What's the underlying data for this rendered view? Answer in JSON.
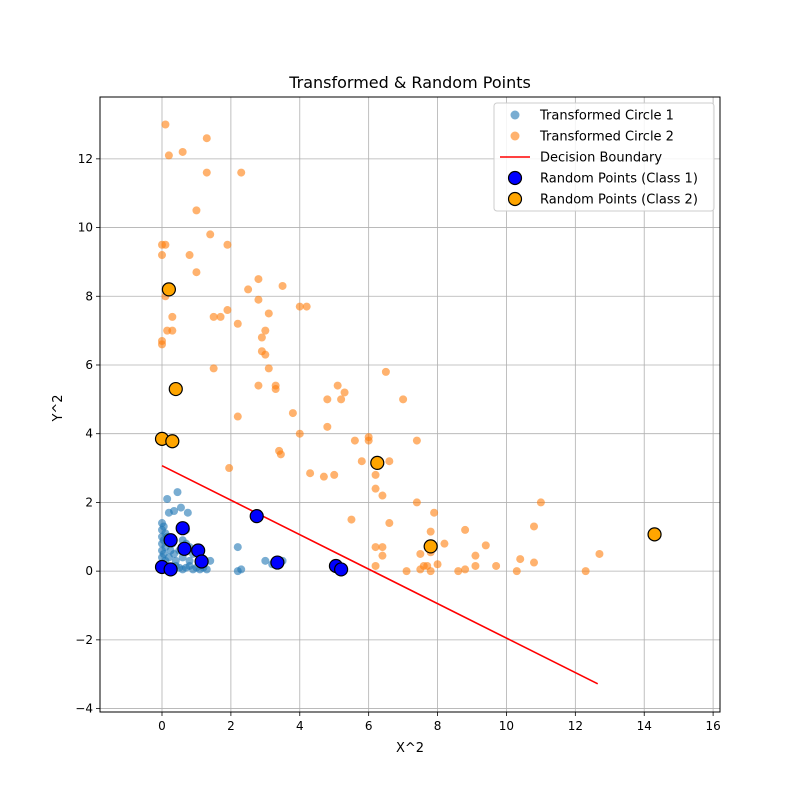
{
  "chart_data": {
    "type": "scatter",
    "title": "Transformed & Random Points",
    "xlabel": "X^2",
    "ylabel": "Y^2",
    "xlim": [
      -1.8,
      16.2
    ],
    "ylim": [
      -4.1,
      13.8
    ],
    "xticks": [
      0,
      2,
      4,
      6,
      8,
      10,
      12,
      14,
      16
    ],
    "yticks": [
      -4,
      -2,
      0,
      2,
      4,
      6,
      8,
      10,
      12
    ],
    "grid": true,
    "legend_position": "top-right",
    "colors": {
      "circle1": "#1f77b4",
      "circle2": "#ff7f0e",
      "boundary": "#ff0000",
      "class1": "#0000ff",
      "class2": "#ffa500"
    },
    "series": [
      {
        "name": "Transformed Circle 1",
        "kind": "scatter",
        "points": [
          [
            0,
            1.4
          ],
          [
            0.05,
            1.3
          ],
          [
            0,
            1.2
          ],
          [
            0.1,
            1.1
          ],
          [
            0,
            1.0
          ],
          [
            0.05,
            0.9
          ],
          [
            0,
            0.8
          ],
          [
            0.1,
            0.7
          ],
          [
            0,
            0.6
          ],
          [
            0.05,
            0.5
          ],
          [
            0,
            0.4
          ],
          [
            0.1,
            0.3
          ],
          [
            0.05,
            0.2
          ],
          [
            0,
            0.1
          ],
          [
            0.1,
            0.05
          ],
          [
            0.2,
            0.1
          ],
          [
            0.3,
            0.05
          ],
          [
            0.4,
            0.15
          ],
          [
            0.5,
            0.1
          ],
          [
            0.6,
            0.05
          ],
          [
            0.7,
            0.1
          ],
          [
            0.8,
            0.15
          ],
          [
            0.9,
            0.05
          ],
          [
            1.0,
            0.1
          ],
          [
            1.1,
            0.05
          ],
          [
            1.2,
            0.1
          ],
          [
            1.3,
            0.05
          ],
          [
            0.15,
            1.0
          ],
          [
            0.25,
            0.6
          ],
          [
            0.3,
            0.8
          ],
          [
            0.35,
            0.5
          ],
          [
            0.5,
            0.6
          ],
          [
            0.6,
            0.9
          ],
          [
            0.7,
            0.8
          ],
          [
            0.8,
            0.7
          ],
          [
            0.9,
            0.5
          ],
          [
            1.0,
            0.6
          ],
          [
            1.1,
            0.4
          ],
          [
            0.4,
            0.3
          ],
          [
            0.6,
            0.4
          ],
          [
            0.8,
            0.3
          ],
          [
            0.2,
            0.4
          ],
          [
            1.2,
            0.3
          ],
          [
            0.15,
            2.1
          ],
          [
            0.2,
            1.7
          ],
          [
            0.35,
            1.75
          ],
          [
            0.45,
            2.3
          ],
          [
            0.55,
            1.85
          ],
          [
            0.75,
            1.7
          ],
          [
            0.7,
            1.2
          ],
          [
            1.4,
            0.3
          ],
          [
            2.2,
            0.7
          ],
          [
            2.2,
            0
          ],
          [
            2.3,
            0.05
          ],
          [
            3.0,
            0.3
          ],
          [
            3.2,
            0.2
          ],
          [
            3.5,
            0.3
          ]
        ]
      },
      {
        "name": "Transformed Circle 2",
        "kind": "scatter",
        "points": [
          [
            0.1,
            13.0
          ],
          [
            0.2,
            12.1
          ],
          [
            0.6,
            12.2
          ],
          [
            1.3,
            12.6
          ],
          [
            1.3,
            11.6
          ],
          [
            2.3,
            11.6
          ],
          [
            1.0,
            10.5
          ],
          [
            1.4,
            9.8
          ],
          [
            0,
            9.5
          ],
          [
            0.1,
            9.5
          ],
          [
            0,
            9.2
          ],
          [
            0.8,
            9.2
          ],
          [
            1.9,
            9.5
          ],
          [
            1.0,
            8.7
          ],
          [
            2.8,
            8.5
          ],
          [
            0.1,
            8.0
          ],
          [
            2.5,
            8.2
          ],
          [
            2.8,
            7.9
          ],
          [
            3.5,
            8.3
          ],
          [
            4.0,
            7.7
          ],
          [
            4.2,
            7.7
          ],
          [
            0.3,
            7.4
          ],
          [
            1.5,
            7.4
          ],
          [
            1.7,
            7.4
          ],
          [
            1.9,
            7.6
          ],
          [
            3.1,
            7.5
          ],
          [
            2.2,
            7.2
          ],
          [
            3.0,
            7.0
          ],
          [
            0.15,
            7.0
          ],
          [
            0.3,
            7.0
          ],
          [
            2.9,
            6.8
          ],
          [
            0,
            6.7
          ],
          [
            0,
            6.6
          ],
          [
            2.9,
            6.4
          ],
          [
            3.0,
            6.3
          ],
          [
            3.1,
            5.9
          ],
          [
            1.5,
            5.9
          ],
          [
            6.5,
            5.8
          ],
          [
            2.8,
            5.4
          ],
          [
            3.3,
            5.4
          ],
          [
            3.3,
            5.3
          ],
          [
            5.1,
            5.4
          ],
          [
            5.3,
            5.2
          ],
          [
            4.8,
            5.0
          ],
          [
            5.2,
            5.0
          ],
          [
            7.0,
            5.0
          ],
          [
            3.8,
            4.6
          ],
          [
            2.2,
            4.5
          ],
          [
            4.8,
            4.2
          ],
          [
            4.0,
            4.0
          ],
          [
            6.0,
            3.9
          ],
          [
            6.0,
            3.8
          ],
          [
            5.6,
            3.8
          ],
          [
            7.4,
            3.8
          ],
          [
            3.4,
            3.5
          ],
          [
            3.45,
            3.4
          ],
          [
            5.8,
            3.2
          ],
          [
            6.6,
            3.2
          ],
          [
            1.95,
            3.0
          ],
          [
            4.3,
            2.85
          ],
          [
            4.7,
            2.75
          ],
          [
            5.0,
            2.8
          ],
          [
            6.2,
            2.8
          ],
          [
            6.2,
            2.4
          ],
          [
            6.4,
            2.2
          ],
          [
            7.4,
            2.0
          ],
          [
            11.0,
            2.0
          ],
          [
            7.9,
            1.7
          ],
          [
            5.5,
            1.5
          ],
          [
            6.6,
            1.4
          ],
          [
            10.8,
            1.3
          ],
          [
            7.8,
            1.15
          ],
          [
            8.8,
            1.2
          ],
          [
            8.2,
            0.8
          ],
          [
            9.4,
            0.75
          ],
          [
            6.2,
            0.7
          ],
          [
            6.4,
            0.7
          ],
          [
            7.8,
            0.55
          ],
          [
            7.5,
            0.5
          ],
          [
            6.4,
            0.45
          ],
          [
            9.1,
            0.45
          ],
          [
            12.7,
            0.5
          ],
          [
            10.4,
            0.35
          ],
          [
            10.8,
            0.25
          ],
          [
            8.0,
            0.2
          ],
          [
            7.6,
            0.15
          ],
          [
            7.7,
            0.15
          ],
          [
            9.1,
            0.15
          ],
          [
            9.7,
            0.15
          ],
          [
            6.2,
            0.15
          ],
          [
            8.6,
            0
          ],
          [
            8.8,
            0.05
          ],
          [
            7.1,
            0
          ],
          [
            7.5,
            0.05
          ],
          [
            7.8,
            0
          ],
          [
            10.3,
            0
          ],
          [
            12.3,
            0
          ]
        ]
      },
      {
        "name": "Decision Boundary",
        "kind": "line",
        "points": [
          [
            0,
            3.07
          ],
          [
            12.65,
            -3.28
          ]
        ]
      },
      {
        "name": "Random Points (Class 1)",
        "kind": "scatter",
        "points": [
          [
            0,
            0.12
          ],
          [
            0.25,
            0.05
          ],
          [
            0.25,
            0.9
          ],
          [
            0.6,
            1.25
          ],
          [
            0.65,
            0.65
          ],
          [
            1.05,
            0.6
          ],
          [
            1.15,
            0.28
          ],
          [
            2.75,
            1.6
          ],
          [
            3.35,
            0.25
          ],
          [
            5.05,
            0.15
          ],
          [
            5.2,
            0.05
          ]
        ]
      },
      {
        "name": "Random Points (Class 2)",
        "kind": "scatter",
        "points": [
          [
            0.2,
            8.2
          ],
          [
            0.4,
            5.3
          ],
          [
            0,
            3.85
          ],
          [
            0.3,
            3.78
          ],
          [
            6.25,
            3.15
          ],
          [
            7.8,
            0.72
          ],
          [
            14.3,
            1.07
          ]
        ]
      }
    ]
  }
}
